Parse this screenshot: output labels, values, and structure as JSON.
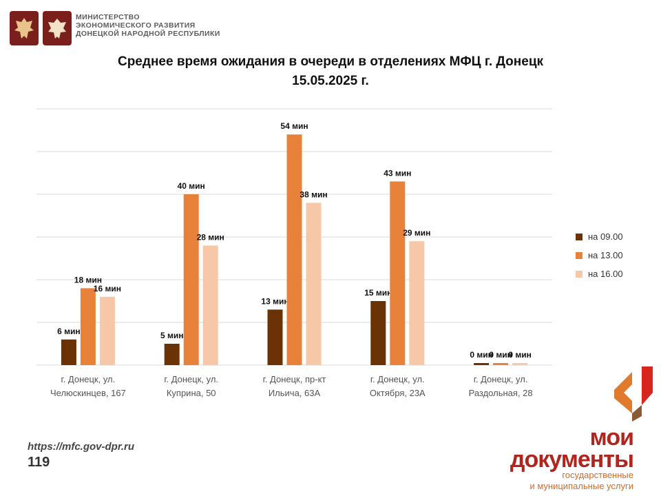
{
  "header": {
    "ministry_lines": [
      "МИНИСТЕРСТВО",
      "ЭКОНОМИЧЕСКОГО РАЗВИТИЯ",
      "ДОНЕЦКОЙ НАРОДНОЙ РЕСПУБЛИКИ"
    ],
    "emblem_icons": [
      "russia-eagle-emblem",
      "dpr-eagle-emblem"
    ]
  },
  "title_line1": "Среднее время ожидания в очереди в отделениях МФЦ г. Донецк",
  "title_line2": "15.05.2025 г.",
  "chart_data": {
    "type": "bar",
    "categories": [
      [
        "г. Донецк, ул.",
        "Челюскинцев, 167"
      ],
      [
        "г. Донецк, ул.",
        "Куприна, 50"
      ],
      [
        "г. Донецк, пр-кт",
        "Ильича, 63А"
      ],
      [
        "г. Донецк, ул.",
        "Октября, 23А"
      ],
      [
        "г. Донецк, ул.",
        "Раздольная, 28"
      ]
    ],
    "series": [
      {
        "name": "на 09.00",
        "color": "#6b3305",
        "values": [
          6,
          5,
          13,
          15,
          0
        ]
      },
      {
        "name": "на 13.00",
        "color": "#e8823a",
        "values": [
          18,
          40,
          54,
          43,
          0
        ]
      },
      {
        "name": "на 16.00",
        "color": "#f7c8a8",
        "values": [
          16,
          28,
          38,
          29,
          0
        ]
      }
    ],
    "value_suffix": " мин",
    "ylim": [
      0,
      60
    ],
    "grid": true,
    "legend_position": "right"
  },
  "footer": {
    "url": "https://mfc.gov-dpr.ru",
    "page_number": "119",
    "logo_line1": "мои",
    "logo_line2": "документы",
    "logo_sub1": "государственные",
    "logo_sub2": "и муниципальные услуги"
  }
}
